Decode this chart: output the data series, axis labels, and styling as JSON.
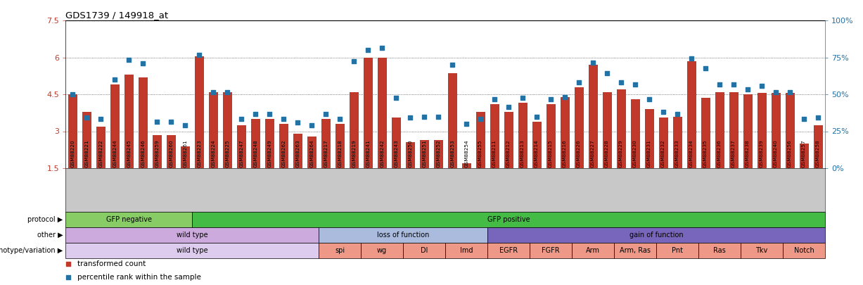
{
  "title": "GDS1739 / 149918_at",
  "samples": [
    "GSM88220",
    "GSM88221",
    "GSM88222",
    "GSM88244",
    "GSM88245",
    "GSM88246",
    "GSM88259",
    "GSM88260",
    "GSM88261",
    "GSM88223",
    "GSM88224",
    "GSM88225",
    "GSM88247",
    "GSM88248",
    "GSM88249",
    "GSM88262",
    "GSM88263",
    "GSM88264",
    "GSM88217",
    "GSM88218",
    "GSM88219",
    "GSM88241",
    "GSM88242",
    "GSM88243",
    "GSM88250",
    "GSM88251",
    "GSM88252",
    "GSM88253",
    "GSM88254",
    "GSM88255",
    "GSM88211",
    "GSM88212",
    "GSM88213",
    "GSM88214",
    "GSM88215",
    "GSM88216",
    "GSM88226",
    "GSM88227",
    "GSM88228",
    "GSM88229",
    "GSM88230",
    "GSM88231",
    "GSM88232",
    "GSM88233",
    "GSM88234",
    "GSM88235",
    "GSM88236",
    "GSM88237",
    "GSM88238",
    "GSM88239",
    "GSM88240",
    "GSM88256",
    "GSM88257",
    "GSM88258"
  ],
  "bar_values": [
    4.5,
    3.8,
    3.2,
    4.9,
    5.3,
    5.2,
    2.85,
    2.85,
    2.4,
    6.05,
    4.6,
    4.6,
    3.25,
    3.5,
    3.5,
    3.3,
    2.9,
    2.8,
    3.5,
    3.3,
    4.6,
    6.0,
    6.0,
    3.55,
    2.55,
    2.65,
    2.65,
    5.35,
    1.7,
    3.8,
    4.1,
    3.8,
    4.15,
    3.4,
    4.1,
    4.4,
    4.8,
    5.7,
    4.6,
    4.7,
    4.3,
    3.9,
    3.55,
    3.6,
    5.85,
    4.35,
    4.6,
    4.6,
    4.5,
    4.55,
    4.55,
    4.55,
    2.5,
    3.25
  ],
  "dot_values": [
    4.5,
    3.55,
    3.5,
    5.1,
    5.9,
    5.75,
    3.4,
    3.4,
    3.25,
    6.1,
    4.6,
    4.6,
    3.5,
    3.7,
    3.7,
    3.5,
    3.35,
    3.25,
    3.7,
    3.5,
    5.85,
    6.3,
    6.4,
    4.35,
    3.55,
    3.6,
    3.6,
    5.7,
    3.3,
    3.5,
    4.3,
    4.0,
    4.35,
    3.6,
    4.3,
    4.4,
    5.0,
    5.8,
    5.35,
    5.0,
    4.9,
    4.3,
    3.8,
    3.7,
    5.95,
    5.55,
    4.9,
    4.9,
    4.7,
    4.85,
    4.6,
    4.6,
    3.5,
    3.55
  ],
  "ylim_min": 1.5,
  "ylim_max": 7.5,
  "yticks": [
    1.5,
    3.0,
    4.5,
    6.0,
    7.5
  ],
  "ytick_labels": [
    "1.5",
    "3",
    "4.5",
    "6",
    "7.5"
  ],
  "right_ytick_percents": [
    0,
    25,
    50,
    75,
    100
  ],
  "right_ytick_labels": [
    "0%",
    "25%",
    "50%",
    "75%",
    "100%"
  ],
  "bar_color": "#C0392B",
  "dot_color": "#2471A3",
  "protocol_label": "protocol",
  "protocol_segments": [
    {
      "text": "GFP negative",
      "start": 0,
      "end": 9,
      "color": "#88CC66"
    },
    {
      "text": "GFP positive",
      "start": 9,
      "end": 54,
      "color": "#44BB44"
    }
  ],
  "other_label": "other",
  "other_segments": [
    {
      "text": "wild type",
      "start": 0,
      "end": 18,
      "color": "#CCAADD"
    },
    {
      "text": "loss of function",
      "start": 18,
      "end": 30,
      "color": "#AABBDD"
    },
    {
      "text": "gain of function",
      "start": 30,
      "end": 54,
      "color": "#7766BB"
    }
  ],
  "genotype_label": "genotype/variation",
  "genotype_segments": [
    {
      "text": "wild type",
      "start": 0,
      "end": 18,
      "color": "#DDCCEE"
    },
    {
      "text": "spi",
      "start": 18,
      "end": 21,
      "color": "#EE9988"
    },
    {
      "text": "wg",
      "start": 21,
      "end": 24,
      "color": "#EE9988"
    },
    {
      "text": "Dl",
      "start": 24,
      "end": 27,
      "color": "#EE9988"
    },
    {
      "text": "Imd",
      "start": 27,
      "end": 30,
      "color": "#EE9988"
    },
    {
      "text": "EGFR",
      "start": 30,
      "end": 33,
      "color": "#EE9988"
    },
    {
      "text": "FGFR",
      "start": 33,
      "end": 36,
      "color": "#EE9988"
    },
    {
      "text": "Arm",
      "start": 36,
      "end": 39,
      "color": "#EE9988"
    },
    {
      "text": "Arm, Ras",
      "start": 39,
      "end": 42,
      "color": "#EE9988"
    },
    {
      "text": "Pnt",
      "start": 42,
      "end": 45,
      "color": "#EE9988"
    },
    {
      "text": "Ras",
      "start": 45,
      "end": 48,
      "color": "#EE9988"
    },
    {
      "text": "Tkv",
      "start": 48,
      "end": 51,
      "color": "#EE9988"
    },
    {
      "text": "Notch",
      "start": 51,
      "end": 54,
      "color": "#EE9988"
    }
  ],
  "legend_items": [
    {
      "color": "#C0392B",
      "label": "transformed count"
    },
    {
      "color": "#2471A3",
      "label": "percentile rank within the sample"
    }
  ],
  "fig_width": 12.27,
  "fig_height": 4.05,
  "dpi": 100
}
